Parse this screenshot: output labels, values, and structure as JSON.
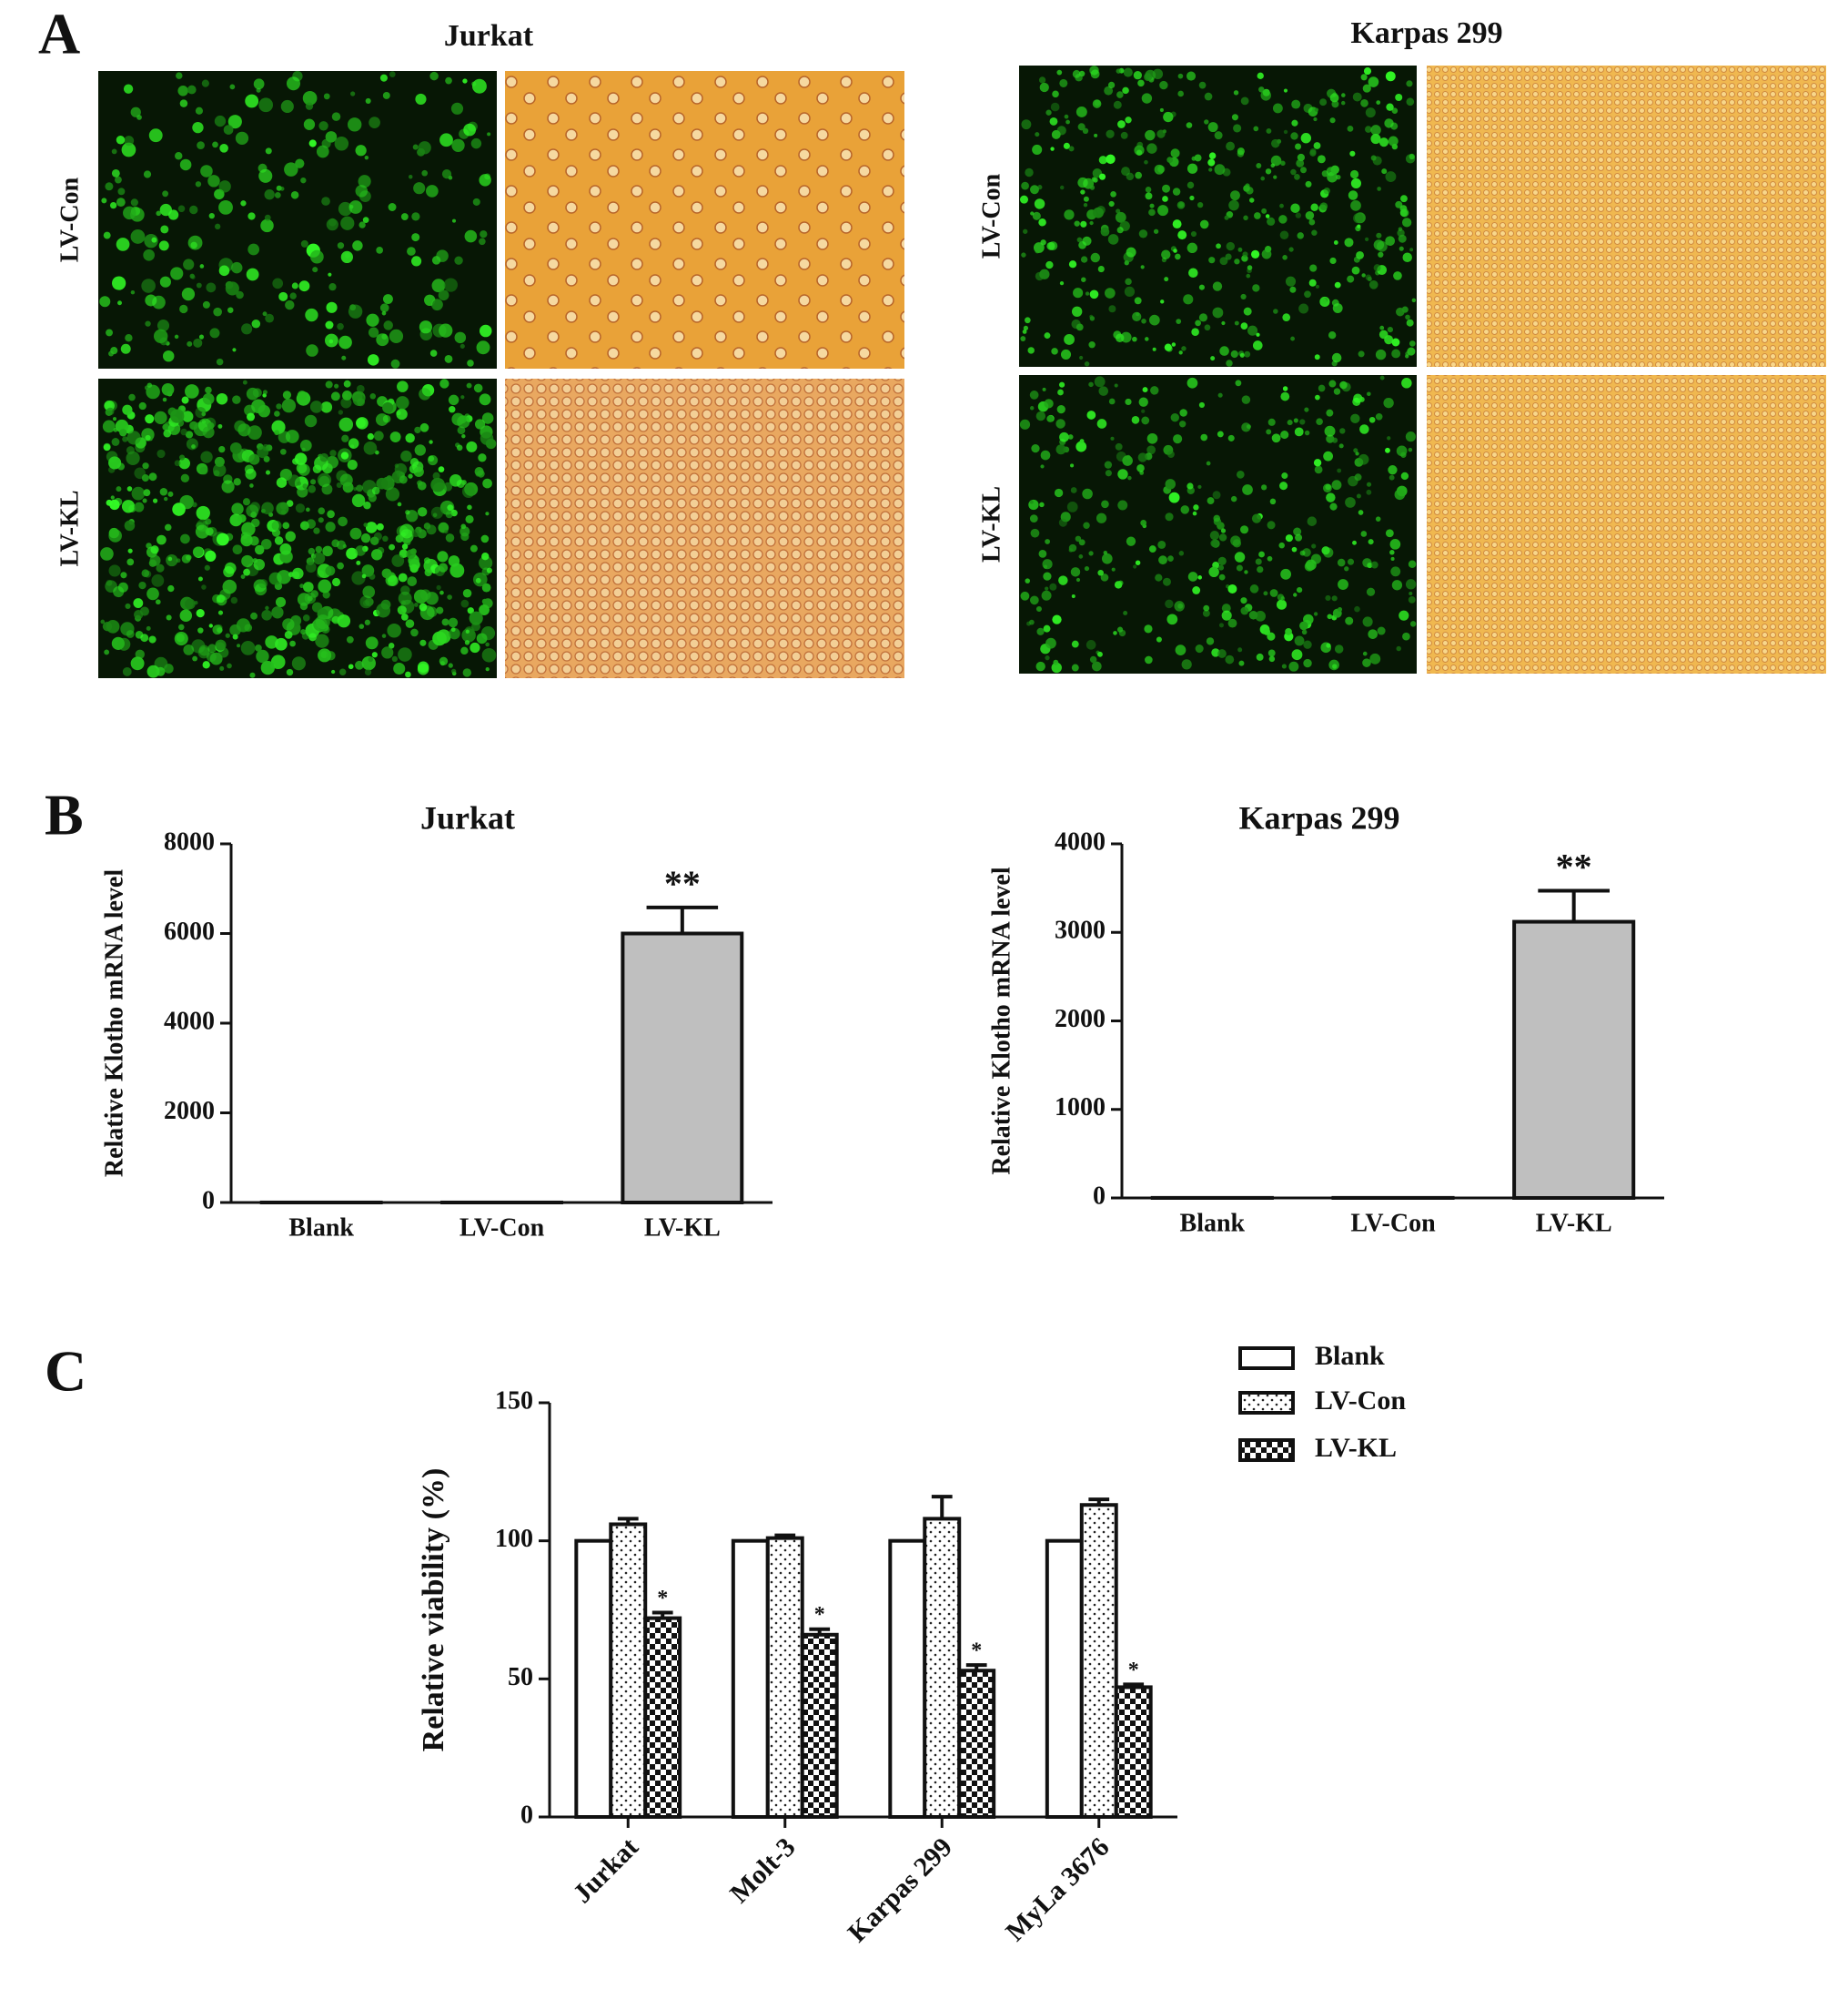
{
  "panel_labels": [
    "A",
    "B",
    "C"
  ],
  "micrographs": [
    {
      "title": "Jurkat",
      "rows": [
        "LV-Con",
        "LV-KL"
      ]
    },
    {
      "title": "Karpas 299",
      "rows": [
        "LV-Con",
        "LV-KL"
      ]
    }
  ],
  "chart_data": [
    {
      "type": "bar",
      "title": "Jurkat",
      "y_label": "Relative Klotho mRNA level",
      "categories": [
        "Blank",
        "LV-Con",
        "LV-KL"
      ],
      "values": [
        1,
        1,
        6000
      ],
      "errors": [
        null,
        null,
        580
      ],
      "significance": [
        null,
        null,
        "**"
      ],
      "color": "#bfbfbf",
      "ylim": [
        0,
        8000
      ],
      "yticks": [
        0,
        2000,
        4000,
        6000,
        8000
      ]
    },
    {
      "type": "bar",
      "title": "Karpas 299",
      "y_label": "Relative Klotho mRNA level",
      "categories": [
        "Blank",
        "LV-Con",
        "LV-KL"
      ],
      "values": [
        1,
        1,
        3120
      ],
      "errors": [
        null,
        null,
        350
      ],
      "significance": [
        null,
        null,
        "**"
      ],
      "color": "#bfbfbf",
      "ylim": [
        0,
        4000
      ],
      "yticks": [
        0,
        1000,
        2000,
        3000,
        4000
      ]
    },
    {
      "type": "grouped_bar",
      "y_label": "Relative viability (%)",
      "categories": [
        "Jurkat",
        "Molt-3",
        "Karpas 299",
        "MyLa 3676"
      ],
      "series": [
        {
          "name": "Blank",
          "pattern": "none",
          "values": [
            100,
            100,
            100,
            100
          ],
          "errors": [
            null,
            null,
            null,
            null
          ],
          "significance": [
            null,
            null,
            null,
            null
          ]
        },
        {
          "name": "LV-Con",
          "pattern": "dots",
          "values": [
            106,
            101,
            108,
            113
          ],
          "errors": [
            2,
            1,
            8,
            2
          ],
          "significance": [
            null,
            null,
            null,
            null
          ]
        },
        {
          "name": "LV-KL",
          "pattern": "checker",
          "values": [
            72,
            66,
            53,
            47
          ],
          "errors": [
            2,
            2,
            2,
            1
          ],
          "significance": [
            "*",
            "*",
            "*",
            "*"
          ]
        }
      ],
      "ylim": [
        0,
        150
      ],
      "yticks": [
        0,
        50,
        100,
        150
      ],
      "legend": "top-right"
    }
  ]
}
